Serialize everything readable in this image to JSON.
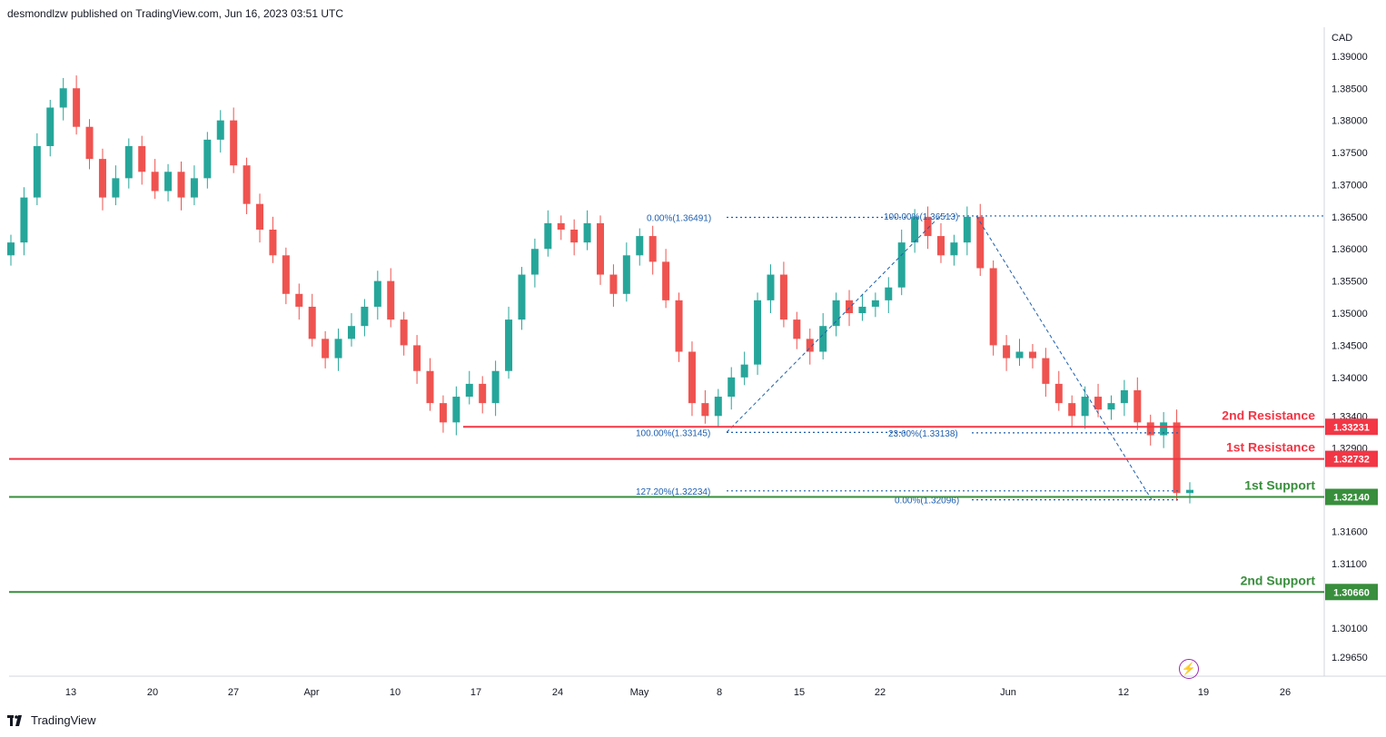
{
  "header": {
    "published": "desmondlzw published on TradingView.com, Jun 16, 2023 03:51 UTC"
  },
  "footer": {
    "brand": "TradingView"
  },
  "icons": {
    "brand_logo": "tradingview-logo-icon",
    "flash": "lightning-icon"
  },
  "colors": {
    "up": "#26a69a",
    "down": "#ef5350",
    "resistance": "#f23645",
    "support": "#388e3c",
    "fib": "#1e5fae",
    "flash": "#9c27b0"
  },
  "chart_data": {
    "type": "candlestick",
    "currency": "CAD",
    "ylim": [
      1.2935,
      1.3945
    ],
    "y_ticks": [
      "1.39000",
      "1.38500",
      "1.38000",
      "1.37500",
      "1.37000",
      "1.36500",
      "1.36000",
      "1.35500",
      "1.35000",
      "1.34500",
      "1.34000",
      "1.33400",
      "1.32900",
      "1.31600",
      "1.31100",
      "1.30100",
      "1.29650"
    ],
    "x_ticks": [
      "13",
      "20",
      "27",
      "Apr",
      "10",
      "17",
      "24",
      "May",
      "8",
      "15",
      "22",
      "Jun",
      "12",
      "19",
      "26"
    ],
    "levels": [
      {
        "label": "2nd Resistance",
        "value": "1.33231",
        "y": 1.33231,
        "kind": "resistance"
      },
      {
        "label": "1st Resistance",
        "value": "1.32732",
        "y": 1.32732,
        "kind": "resistance"
      },
      {
        "label": "1st Support",
        "value": "1.32140",
        "y": 1.3214,
        "kind": "support"
      },
      {
        "label": "2nd Support",
        "value": "1.30660",
        "y": 1.3066,
        "kind": "support"
      }
    ],
    "fib_labels": [
      {
        "text": "0.00%(1.36491)",
        "y": 1.36491
      },
      {
        "text": "100.00%(1.36513)",
        "y": 1.36513
      },
      {
        "text": "100.00%(1.33145)",
        "y": 1.33145
      },
      {
        "text": "23.60%(1.33138)",
        "y": 1.33138
      },
      {
        "text": "127.20%(1.32234)",
        "y": 1.32234
      },
      {
        "text": "0.00%(1.32096)",
        "y": 1.32096
      }
    ],
    "price_path": [
      1.361,
      1.368,
      1.376,
      1.382,
      1.385,
      1.379,
      1.374,
      1.368,
      1.371,
      1.376,
      1.372,
      1.369,
      1.372,
      1.368,
      1.371,
      1.377,
      1.38,
      1.373,
      1.367,
      1.363,
      1.359,
      1.353,
      1.351,
      1.346,
      1.343,
      1.346,
      1.348,
      1.351,
      1.355,
      1.349,
      1.345,
      1.341,
      1.336,
      1.333,
      1.337,
      1.339,
      1.336,
      1.341,
      1.349,
      1.356,
      1.36,
      1.364,
      1.363,
      1.361,
      1.364,
      1.356,
      1.353,
      1.359,
      1.362,
      1.358,
      1.352,
      1.344,
      1.336,
      1.334,
      1.337,
      1.34,
      1.342,
      1.352,
      1.356,
      1.349,
      1.346,
      1.344,
      1.348,
      1.352,
      1.35,
      1.351,
      1.352,
      1.354,
      1.361,
      1.365,
      1.362,
      1.359,
      1.361,
      1.365,
      1.357,
      1.345,
      1.343,
      1.344,
      1.343,
      1.339,
      1.336,
      1.334,
      1.337,
      1.335,
      1.336,
      1.338,
      1.333,
      1.331,
      1.333,
      1.322,
      1.3225
    ]
  }
}
